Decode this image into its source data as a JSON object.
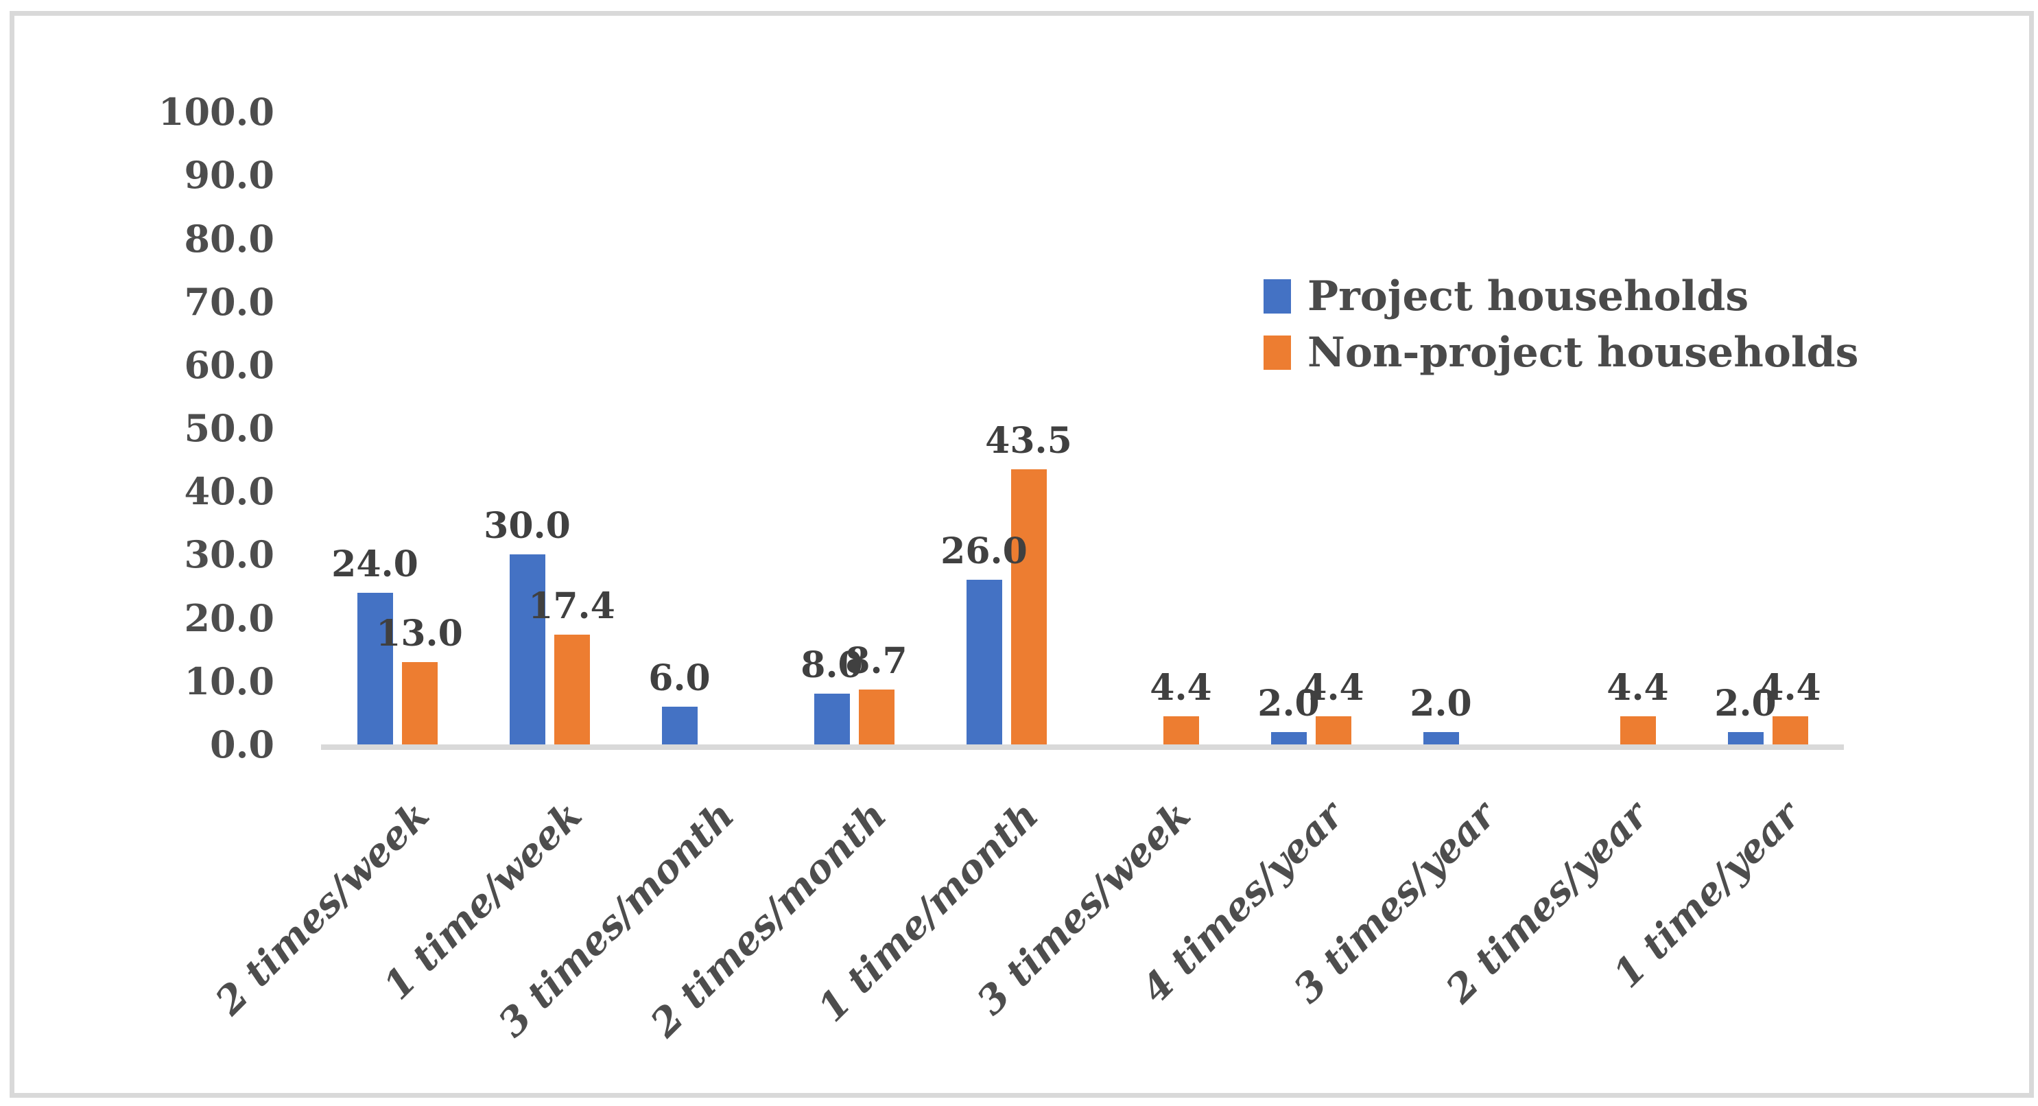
{
  "chart_data": {
    "type": "bar",
    "title": "",
    "xlabel": "",
    "ylabel": "",
    "categories": [
      "2 times/week",
      "1 time/week",
      "3 times/month",
      "2 times/month",
      "1 time/month",
      "3 times/week",
      "4 times/year",
      "3 times/year",
      "2 times/year",
      "1 time/year"
    ],
    "series": [
      {
        "name": "Project households",
        "color": "#4472C4",
        "values": [
          24.0,
          30.0,
          6.0,
          8.0,
          26.0,
          null,
          2.0,
          2.0,
          null,
          2.0
        ]
      },
      {
        "name": "Non-project households",
        "color": "#ED7D31",
        "values": [
          13.0,
          17.4,
          null,
          8.7,
          43.5,
          4.4,
          4.4,
          null,
          4.4,
          4.4
        ]
      }
    ],
    "data_labels": [
      [
        "24.0",
        "30.0",
        "6.0",
        "8.0",
        "26.0",
        null,
        "2.0",
        "2.0",
        null,
        "2.0"
      ],
      [
        "13.0",
        "17.4",
        null,
        "8.7",
        "43.5",
        "4.4",
        "4.4",
        null,
        "4.4",
        "4.4"
      ]
    ],
    "ylim": [
      0,
      100
    ],
    "ytick_step": 10,
    "ytick_labels": [
      "0.0",
      "10.0",
      "20.0",
      "30.0",
      "40.0",
      "50.0",
      "60.0",
      "70.0",
      "80.0",
      "90.0",
      "100.0"
    ],
    "grid": false,
    "legend_position": "upper-right",
    "bar_orientation": "vertical"
  },
  "legend": {
    "items": [
      {
        "label": "Project households",
        "color": "#4472C4"
      },
      {
        "label": "Non-project households",
        "color": "#ED7D31"
      }
    ]
  },
  "colors": {
    "axis_line": "#d9d9d9",
    "frame_border": "#d9d9d9",
    "text": "#4d4d4d",
    "data_label_text": "#404040",
    "background": "#ffffff"
  }
}
